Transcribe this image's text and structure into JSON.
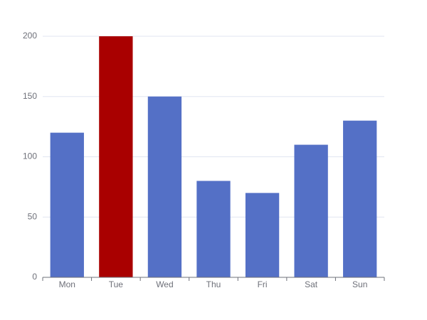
{
  "chart_data": {
    "type": "bar",
    "categories": [
      "Mon",
      "Tue",
      "Wed",
      "Thu",
      "Fri",
      "Sat",
      "Sun"
    ],
    "values": [
      120,
      200,
      150,
      80,
      70,
      110,
      130
    ],
    "colors": [
      "#5470c6",
      "#a90000",
      "#5470c6",
      "#5470c6",
      "#5470c6",
      "#5470c6",
      "#5470c6"
    ],
    "ylim": [
      0,
      200
    ],
    "yticks": [
      0,
      50,
      100,
      150,
      200
    ],
    "grid": true
  }
}
